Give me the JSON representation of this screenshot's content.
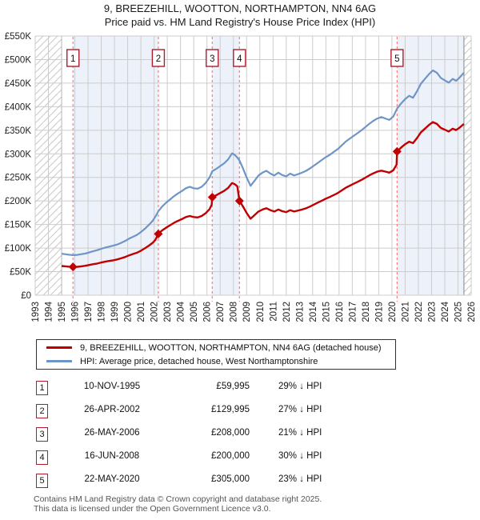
{
  "title": "9, BREEZEHILL, WOOTTON, NORTHAMPTON, NN4 6AG",
  "subtitle": "Price paid vs. HM Land Registry's House Price Index (HPI)",
  "chart_data": {
    "type": "line",
    "x_axis": {
      "start_year": 1993,
      "end_year": 2026
    },
    "y_axis": {
      "min": 0,
      "max": 550,
      "step": 50,
      "tick_labels": [
        "£0",
        "£50K",
        "£100K",
        "£150K",
        "£200K",
        "£250K",
        "£300K",
        "£350K",
        "£400K",
        "£450K",
        "£500K",
        "£550K"
      ]
    },
    "grid": true,
    "colors": {
      "price": "#c00000",
      "hpi": "#6d95c8",
      "sale_line": "#f57f7f",
      "band": "#edf1fa",
      "grid": "#cccccc",
      "hatch": "#c8c8c8",
      "boundary": "#999999",
      "num_box_border": "#b01c2e"
    },
    "data_start_year": 1995.0,
    "data_end_year": 2025.45,
    "bands": [
      [
        1995.86,
        2002.32
      ],
      [
        2006.4,
        2008.46
      ],
      [
        2020.39,
        2025.45
      ]
    ],
    "hatch_regions": [
      [
        1993,
        1995.0
      ],
      [
        2025.45,
        2026
      ]
    ],
    "sales": [
      {
        "n": "1",
        "year": 1995.86,
        "price_k": 60
      },
      {
        "n": "2",
        "year": 2002.32,
        "price_k": 130
      },
      {
        "n": "3",
        "year": 2006.4,
        "price_k": 208
      },
      {
        "n": "4",
        "year": 2008.46,
        "price_k": 200
      },
      {
        "n": "5",
        "year": 2020.39,
        "price_k": 305
      }
    ],
    "series": [
      {
        "name": "9, BREEZEHILL, WOOTTON, NORTHAMPTON, NN4 6AG (detached house)",
        "key": "price",
        "points": [
          [
            1995.0,
            62
          ],
          [
            1995.3,
            61.3
          ],
          [
            1995.6,
            60.5
          ],
          [
            1995.86,
            60
          ],
          [
            1996.2,
            60.3
          ],
          [
            1996.5,
            61.3
          ],
          [
            1996.8,
            62.4
          ],
          [
            1997.1,
            64.2
          ],
          [
            1997.4,
            65.9
          ],
          [
            1997.7,
            67.3
          ],
          [
            1998.0,
            69.4
          ],
          [
            1998.3,
            71.2
          ],
          [
            1998.6,
            72.6
          ],
          [
            1998.9,
            74
          ],
          [
            1999.2,
            75.8
          ],
          [
            1999.5,
            78.2
          ],
          [
            1999.8,
            81
          ],
          [
            2000.1,
            84.6
          ],
          [
            2000.4,
            87.4
          ],
          [
            2000.7,
            90.2
          ],
          [
            2001.0,
            94.4
          ],
          [
            2001.3,
            99.4
          ],
          [
            2001.6,
            105
          ],
          [
            2001.9,
            111.4
          ],
          [
            2002.1,
            117.7
          ],
          [
            2002.32,
            130
          ],
          [
            2002.6,
            137.3
          ],
          [
            2002.9,
            143.1
          ],
          [
            2003.2,
            148.3
          ],
          [
            2003.5,
            153.4
          ],
          [
            2003.8,
            157.7
          ],
          [
            2004.1,
            161.4
          ],
          [
            2004.4,
            165.8
          ],
          [
            2004.7,
            168
          ],
          [
            2005.0,
            165.8
          ],
          [
            2005.3,
            165
          ],
          [
            2005.6,
            168
          ],
          [
            2005.9,
            173.8
          ],
          [
            2006.2,
            182.6
          ],
          [
            2006.36,
            192
          ],
          [
            2006.4,
            208
          ],
          [
            2006.7,
            212
          ],
          [
            2007.0,
            216.7
          ],
          [
            2007.3,
            221.4
          ],
          [
            2007.6,
            227.7
          ],
          [
            2007.9,
            238
          ],
          [
            2008.1,
            235.6
          ],
          [
            2008.3,
            230.9
          ],
          [
            2008.46,
            200
          ],
          [
            2008.7,
            189.5
          ],
          [
            2009.0,
            174.8
          ],
          [
            2009.3,
            162.2
          ],
          [
            2009.6,
            169.9
          ],
          [
            2009.9,
            177.6
          ],
          [
            2010.2,
            181.8
          ],
          [
            2010.5,
            184.6
          ],
          [
            2010.8,
            180.4
          ],
          [
            2011.1,
            177.6
          ],
          [
            2011.4,
            181.8
          ],
          [
            2011.7,
            178.3
          ],
          [
            2012.0,
            176.2
          ],
          [
            2012.3,
            180.4
          ],
          [
            2012.6,
            177.6
          ],
          [
            2012.9,
            179.7
          ],
          [
            2013.2,
            181.8
          ],
          [
            2013.5,
            184.6
          ],
          [
            2013.8,
            188.1
          ],
          [
            2014.1,
            192.3
          ],
          [
            2014.4,
            196.5
          ],
          [
            2014.7,
            200.7
          ],
          [
            2015.0,
            204.9
          ],
          [
            2015.3,
            208.4
          ],
          [
            2015.6,
            212.6
          ],
          [
            2015.9,
            216.8
          ],
          [
            2016.2,
            222.4
          ],
          [
            2016.5,
            228
          ],
          [
            2016.8,
            232.2
          ],
          [
            2017.1,
            236.4
          ],
          [
            2017.4,
            240.6
          ],
          [
            2017.7,
            244.8
          ],
          [
            2018.0,
            249.6
          ],
          [
            2018.3,
            254.5
          ],
          [
            2018.6,
            258.7
          ],
          [
            2018.9,
            262.2
          ],
          [
            2019.2,
            264.3
          ],
          [
            2019.5,
            262.2
          ],
          [
            2019.8,
            260.1
          ],
          [
            2020.1,
            265
          ],
          [
            2020.35,
            277
          ],
          [
            2020.39,
            305
          ],
          [
            2020.7,
            313.5
          ],
          [
            2021.0,
            320.4
          ],
          [
            2021.3,
            325.8
          ],
          [
            2021.6,
            322.7
          ],
          [
            2021.9,
            333.5
          ],
          [
            2022.2,
            345.8
          ],
          [
            2022.5,
            353.5
          ],
          [
            2022.8,
            361.2
          ],
          [
            2023.1,
            367.4
          ],
          [
            2023.4,
            363.5
          ],
          [
            2023.7,
            355
          ],
          [
            2024.0,
            351.2
          ],
          [
            2024.3,
            347.3
          ],
          [
            2024.6,
            353.5
          ],
          [
            2024.85,
            350.4
          ],
          [
            2025.1,
            355
          ],
          [
            2025.45,
            363.5
          ]
        ]
      },
      {
        "name": "HPI: Average price, detached house, West Northamptonshire",
        "key": "hpi",
        "points": [
          [
            1995.0,
            88
          ],
          [
            1995.25,
            87
          ],
          [
            1995.5,
            86
          ],
          [
            1995.86,
            85
          ],
          [
            1996.2,
            85.5
          ],
          [
            1996.5,
            87
          ],
          [
            1996.8,
            88.5
          ],
          [
            1997.1,
            91
          ],
          [
            1997.4,
            93.5
          ],
          [
            1997.7,
            95.5
          ],
          [
            1998.0,
            98.5
          ],
          [
            1998.3,
            101
          ],
          [
            1998.6,
            103
          ],
          [
            1998.9,
            105
          ],
          [
            1999.2,
            107.5
          ],
          [
            1999.5,
            111
          ],
          [
            1999.8,
            115
          ],
          [
            2000.1,
            120
          ],
          [
            2000.4,
            124
          ],
          [
            2000.7,
            128
          ],
          [
            2001.0,
            134
          ],
          [
            2001.3,
            141
          ],
          [
            2001.6,
            149
          ],
          [
            2001.9,
            158
          ],
          [
            2002.1,
            167
          ],
          [
            2002.32,
            178
          ],
          [
            2002.6,
            188
          ],
          [
            2002.9,
            196
          ],
          [
            2003.2,
            203
          ],
          [
            2003.5,
            210
          ],
          [
            2003.8,
            216
          ],
          [
            2004.1,
            221
          ],
          [
            2004.4,
            227
          ],
          [
            2004.7,
            230
          ],
          [
            2005.0,
            227
          ],
          [
            2005.3,
            226
          ],
          [
            2005.6,
            230
          ],
          [
            2005.9,
            238
          ],
          [
            2006.2,
            250
          ],
          [
            2006.4,
            263
          ],
          [
            2006.7,
            268
          ],
          [
            2007.0,
            274
          ],
          [
            2007.3,
            280
          ],
          [
            2007.6,
            288
          ],
          [
            2007.9,
            301
          ],
          [
            2008.1,
            298
          ],
          [
            2008.3,
            292
          ],
          [
            2008.46,
            286
          ],
          [
            2008.7,
            271
          ],
          [
            2009.0,
            250
          ],
          [
            2009.3,
            232
          ],
          [
            2009.6,
            243
          ],
          [
            2009.9,
            254
          ],
          [
            2010.2,
            260
          ],
          [
            2010.5,
            264
          ],
          [
            2010.8,
            258
          ],
          [
            2011.1,
            254
          ],
          [
            2011.4,
            260
          ],
          [
            2011.7,
            255
          ],
          [
            2012.0,
            252
          ],
          [
            2012.3,
            258
          ],
          [
            2012.6,
            254
          ],
          [
            2012.9,
            257
          ],
          [
            2013.2,
            260
          ],
          [
            2013.5,
            264
          ],
          [
            2013.8,
            269
          ],
          [
            2014.1,
            275
          ],
          [
            2014.4,
            281
          ],
          [
            2014.7,
            287
          ],
          [
            2015.0,
            293
          ],
          [
            2015.3,
            298
          ],
          [
            2015.6,
            304
          ],
          [
            2015.9,
            310
          ],
          [
            2016.2,
            318
          ],
          [
            2016.5,
            326
          ],
          [
            2016.8,
            332
          ],
          [
            2017.1,
            338
          ],
          [
            2017.4,
            344
          ],
          [
            2017.7,
            350
          ],
          [
            2018.0,
            357
          ],
          [
            2018.3,
            364
          ],
          [
            2018.6,
            370
          ],
          [
            2018.9,
            375
          ],
          [
            2019.2,
            378
          ],
          [
            2019.5,
            375
          ],
          [
            2019.8,
            372
          ],
          [
            2020.1,
            379
          ],
          [
            2020.39,
            396
          ],
          [
            2020.7,
            407
          ],
          [
            2021.0,
            416
          ],
          [
            2021.3,
            423
          ],
          [
            2021.6,
            419
          ],
          [
            2021.9,
            433
          ],
          [
            2022.2,
            449
          ],
          [
            2022.5,
            459
          ],
          [
            2022.8,
            469
          ],
          [
            2023.1,
            477
          ],
          [
            2023.4,
            472
          ],
          [
            2023.7,
            461
          ],
          [
            2024.0,
            456
          ],
          [
            2024.3,
            451
          ],
          [
            2024.6,
            459
          ],
          [
            2024.85,
            455
          ],
          [
            2025.1,
            461
          ],
          [
            2025.45,
            472
          ]
        ]
      }
    ]
  },
  "legend": {
    "entries": [
      {
        "label": "9, BREEZEHILL, WOOTTON, NORTHAMPTON, NN4 6AG (detached house)",
        "color_key": "price"
      },
      {
        "label": "HPI: Average price, detached house, West Northamptonshire",
        "color_key": "hpi"
      }
    ]
  },
  "table": {
    "rows": [
      {
        "num": "1",
        "date": "10-NOV-1995",
        "price": "£59,995",
        "hpi": "29% ↓ HPI"
      },
      {
        "num": "2",
        "date": "26-APR-2002",
        "price": "£129,995",
        "hpi": "27% ↓ HPI"
      },
      {
        "num": "3",
        "date": "26-MAY-2006",
        "price": "£208,000",
        "hpi": "21% ↓ HPI"
      },
      {
        "num": "4",
        "date": "16-JUN-2008",
        "price": "£200,000",
        "hpi": "30% ↓ HPI"
      },
      {
        "num": "5",
        "date": "22-MAY-2020",
        "price": "£305,000",
        "hpi": "23% ↓ HPI"
      }
    ]
  },
  "footer": {
    "line1": "Contains HM Land Registry data © Crown copyright and database right 2025.",
    "line2": "This data is licensed under the Open Government Licence v3.0."
  }
}
